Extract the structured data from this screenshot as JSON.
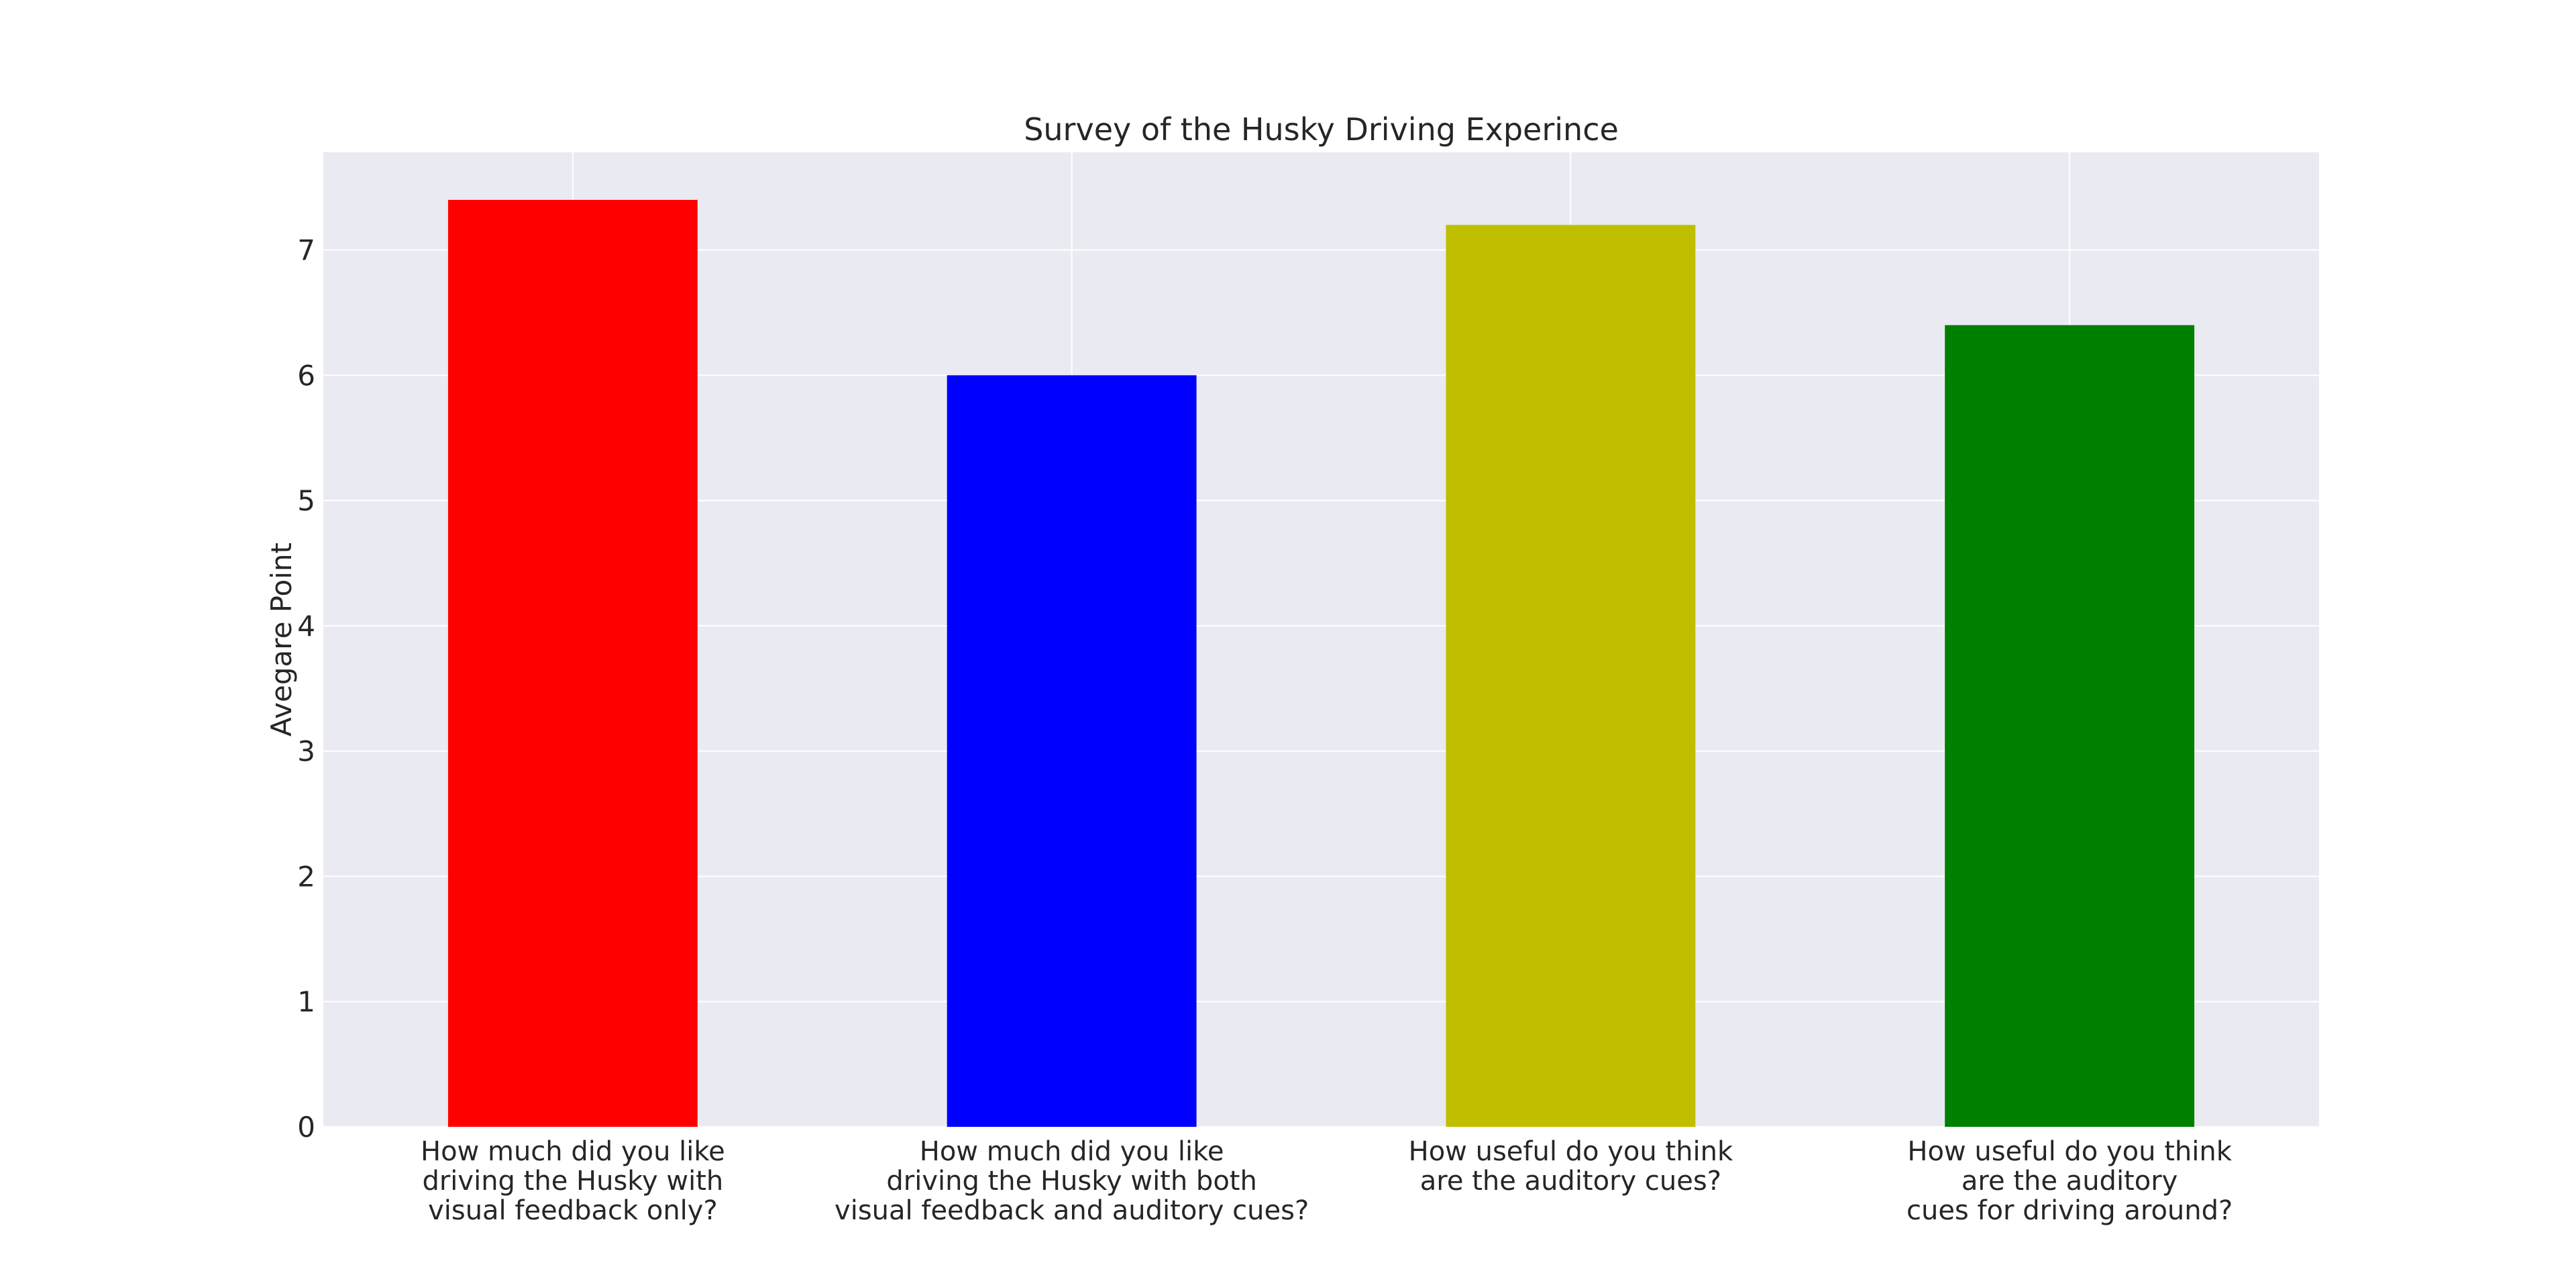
{
  "chart_data": {
    "type": "bar",
    "title": "Survey of the Husky Driving Experince",
    "xlabel": "",
    "ylabel": "Avegare Point",
    "ylim": [
      0,
      7.78
    ],
    "yticks": [
      0,
      1,
      2,
      3,
      4,
      5,
      6,
      7
    ],
    "grid": true,
    "categories": [
      [
        "How much did you like",
        "driving the Husky with",
        "visual feedback only?"
      ],
      [
        "How much did you like",
        "driving the Husky with both",
        "visual feedback and auditory cues?"
      ],
      [
        "How useful do you think",
        "are the auditory cues?"
      ],
      [
        "How useful do you think",
        "are the auditory",
        "cues for driving around?"
      ]
    ],
    "values": [
      7.4,
      6.0,
      7.2,
      6.4
    ],
    "colors": [
      "#ff0000",
      "#0000ff",
      "#bfbf00",
      "#008000"
    ],
    "plot_background": "#eaeaf2",
    "grid_color": "#ffffff"
  }
}
